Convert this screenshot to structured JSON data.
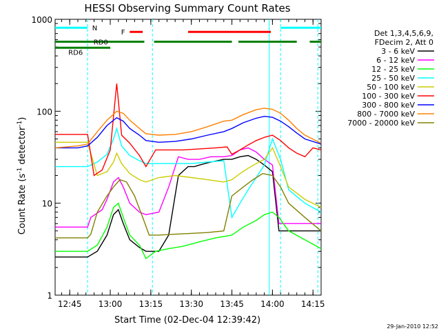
{
  "chart_data": {
    "type": "line",
    "title": "HESSI Observing Summary Count Rates",
    "xlabel": "Start Time (02-Dec-04 12:39:42)",
    "ylabel_main": "Count Rate (s",
    "ylabel_sup1": "-1",
    "ylabel_mid": " detector",
    "ylabel_sup2": "-1",
    "ylabel_end": ")",
    "ylim": [
      1,
      1000
    ],
    "yscale": "log",
    "xlim_minutes": [
      12.66,
      14.3
    ],
    "x_ticks": [
      {
        "t": 12.75,
        "label": "12:45"
      },
      {
        "t": 13.0,
        "label": "13:00"
      },
      {
        "t": 13.25,
        "label": "13:15"
      },
      {
        "t": 13.5,
        "label": "13:30"
      },
      {
        "t": 13.75,
        "label": "13:45"
      },
      {
        "t": 14.0,
        "label": "14:00"
      },
      {
        "t": 14.25,
        "label": "14:15"
      }
    ],
    "y_ticks": [
      {
        "v": 1,
        "label": "1"
      },
      {
        "v": 10,
        "label": "10"
      },
      {
        "v": 100,
        "label": "100"
      },
      {
        "v": 1000,
        "label": "1000"
      }
    ],
    "legend_header": [
      "Det 1,3,4,5,6,9,",
      "FDecim 2, Att 0"
    ],
    "series": [
      {
        "name": "3 - 6 keV",
        "color": "#000000",
        "points": [
          [
            12.66,
            2.6
          ],
          [
            12.86,
            2.6
          ],
          [
            12.92,
            3.0
          ],
          [
            12.98,
            4.5
          ],
          [
            13.02,
            7.5
          ],
          [
            13.05,
            8.5
          ],
          [
            13.08,
            6.0
          ],
          [
            13.12,
            4.0
          ],
          [
            13.18,
            3.3
          ],
          [
            13.22,
            3.0
          ],
          [
            13.3,
            3.0
          ],
          [
            13.36,
            4.5
          ],
          [
            13.42,
            20
          ],
          [
            13.48,
            25
          ],
          [
            13.52,
            25
          ],
          [
            13.55,
            26
          ],
          [
            13.62,
            28
          ],
          [
            13.7,
            30
          ],
          [
            13.75,
            30
          ],
          [
            13.8,
            32
          ],
          [
            13.85,
            33
          ],
          [
            13.9,
            30
          ],
          [
            13.95,
            26
          ],
          [
            14.0,
            22
          ],
          [
            14.04,
            5
          ],
          [
            14.08,
            5
          ],
          [
            14.15,
            5
          ],
          [
            14.3,
            5
          ]
        ]
      },
      {
        "name": "6 - 12 keV",
        "color": "#ff00ff",
        "points": [
          [
            12.66,
            5.5
          ],
          [
            12.86,
            5.5
          ],
          [
            12.88,
            7
          ],
          [
            12.95,
            8.5
          ],
          [
            12.98,
            11
          ],
          [
            13.02,
            17
          ],
          [
            13.05,
            19
          ],
          [
            13.08,
            15
          ],
          [
            13.12,
            10
          ],
          [
            13.18,
            8
          ],
          [
            13.22,
            7.5
          ],
          [
            13.3,
            8
          ],
          [
            13.36,
            15
          ],
          [
            13.42,
            32
          ],
          [
            13.48,
            30
          ],
          [
            13.55,
            30
          ],
          [
            13.62,
            32
          ],
          [
            13.7,
            32
          ],
          [
            13.75,
            33
          ],
          [
            13.8,
            38
          ],
          [
            13.85,
            40
          ],
          [
            13.9,
            36
          ],
          [
            13.95,
            30
          ],
          [
            14.0,
            26
          ],
          [
            14.04,
            6
          ],
          [
            14.1,
            6
          ],
          [
            14.3,
            6
          ]
        ]
      },
      {
        "name": "12 - 25 keV",
        "color": "#00ff00",
        "points": [
          [
            12.66,
            3.0
          ],
          [
            12.86,
            3.0
          ],
          [
            12.92,
            3.5
          ],
          [
            12.98,
            5.5
          ],
          [
            13.02,
            9
          ],
          [
            13.05,
            10
          ],
          [
            13.08,
            7
          ],
          [
            13.12,
            4.5
          ],
          [
            13.18,
            3.5
          ],
          [
            13.22,
            2.5
          ],
          [
            13.28,
            3.0
          ],
          [
            13.36,
            3.2
          ],
          [
            13.45,
            3.4
          ],
          [
            13.55,
            3.8
          ],
          [
            13.65,
            4.2
          ],
          [
            13.75,
            4.5
          ],
          [
            13.82,
            5.5
          ],
          [
            13.9,
            6.5
          ],
          [
            13.95,
            7.5
          ],
          [
            14.0,
            8.0
          ],
          [
            14.04,
            7
          ],
          [
            14.1,
            5
          ],
          [
            14.2,
            4
          ],
          [
            14.3,
            3.2
          ]
        ]
      },
      {
        "name": "25 - 50 keV",
        "color": "#00ffff",
        "points": [
          [
            12.66,
            25
          ],
          [
            12.86,
            25
          ],
          [
            12.92,
            28
          ],
          [
            12.98,
            34
          ],
          [
            13.02,
            50
          ],
          [
            13.04,
            65
          ],
          [
            13.07,
            42
          ],
          [
            13.12,
            33
          ],
          [
            13.18,
            29
          ],
          [
            13.22,
            27
          ],
          [
            13.3,
            27
          ],
          [
            13.4,
            27
          ],
          [
            13.5,
            27
          ],
          [
            13.6,
            28
          ],
          [
            13.7,
            29
          ],
          [
            13.75,
            7
          ],
          [
            13.8,
            10
          ],
          [
            13.85,
            14
          ],
          [
            13.9,
            19
          ],
          [
            13.95,
            26
          ],
          [
            14.0,
            50
          ],
          [
            14.05,
            30
          ],
          [
            14.1,
            14
          ],
          [
            14.2,
            10
          ],
          [
            14.3,
            8
          ]
        ]
      },
      {
        "name": "50 - 100 keV",
        "color": "#cccc00",
        "points": [
          [
            12.66,
            46
          ],
          [
            12.86,
            46
          ],
          [
            12.92,
            20
          ],
          [
            12.98,
            22
          ],
          [
            13.02,
            28
          ],
          [
            13.04,
            35
          ],
          [
            13.07,
            27
          ],
          [
            13.12,
            21
          ],
          [
            13.18,
            18
          ],
          [
            13.22,
            17
          ],
          [
            13.3,
            19
          ],
          [
            13.4,
            20
          ],
          [
            13.5,
            19
          ],
          [
            13.6,
            18
          ],
          [
            13.7,
            17
          ],
          [
            13.75,
            18
          ],
          [
            13.8,
            21
          ],
          [
            13.85,
            24
          ],
          [
            13.9,
            27
          ],
          [
            13.95,
            30
          ],
          [
            14.0,
            40
          ],
          [
            14.05,
            25
          ],
          [
            14.1,
            15
          ],
          [
            14.2,
            11
          ],
          [
            14.3,
            9
          ]
        ]
      },
      {
        "name": "100 - 300 keV",
        "color": "#ff0000",
        "points": [
          [
            12.66,
            56
          ],
          [
            12.86,
            56
          ],
          [
            12.9,
            20
          ],
          [
            12.95,
            23
          ],
          [
            13.0,
            38
          ],
          [
            13.04,
            200
          ],
          [
            13.07,
            55
          ],
          [
            13.12,
            45
          ],
          [
            13.18,
            33
          ],
          [
            13.22,
            25
          ],
          [
            13.28,
            38
          ],
          [
            13.35,
            38
          ],
          [
            13.45,
            38
          ],
          [
            13.55,
            39
          ],
          [
            13.65,
            40
          ],
          [
            13.72,
            41
          ],
          [
            13.75,
            34
          ],
          [
            13.8,
            38
          ],
          [
            13.85,
            43
          ],
          [
            13.9,
            48
          ],
          [
            13.95,
            52
          ],
          [
            14.0,
            55
          ],
          [
            14.05,
            48
          ],
          [
            14.1,
            40
          ],
          [
            14.15,
            35
          ],
          [
            14.2,
            32
          ],
          [
            14.25,
            40
          ],
          [
            14.3,
            38
          ]
        ]
      },
      {
        "name": "300 - 800 keV",
        "color": "#0000ff",
        "points": [
          [
            12.66,
            40
          ],
          [
            12.8,
            40
          ],
          [
            12.86,
            42
          ],
          [
            12.92,
            52
          ],
          [
            12.98,
            70
          ],
          [
            13.04,
            85
          ],
          [
            13.08,
            78
          ],
          [
            13.12,
            65
          ],
          [
            13.18,
            55
          ],
          [
            13.22,
            48
          ],
          [
            13.3,
            46
          ],
          [
            13.4,
            47
          ],
          [
            13.5,
            50
          ],
          [
            13.6,
            55
          ],
          [
            13.7,
            60
          ],
          [
            13.75,
            65
          ],
          [
            13.82,
            75
          ],
          [
            13.9,
            84
          ],
          [
            13.95,
            88
          ],
          [
            14.0,
            86
          ],
          [
            14.05,
            78
          ],
          [
            14.1,
            68
          ],
          [
            14.15,
            58
          ],
          [
            14.2,
            50
          ],
          [
            14.3,
            44
          ]
        ]
      },
      {
        "name": "800 - 7000 keV",
        "color": "#ff8000",
        "points": [
          [
            12.66,
            40
          ],
          [
            12.8,
            42
          ],
          [
            12.86,
            44
          ],
          [
            12.92,
            60
          ],
          [
            12.98,
            80
          ],
          [
            13.04,
            100
          ],
          [
            13.08,
            95
          ],
          [
            13.12,
            80
          ],
          [
            13.18,
            65
          ],
          [
            13.22,
            57
          ],
          [
            13.3,
            55
          ],
          [
            13.4,
            56
          ],
          [
            13.5,
            60
          ],
          [
            13.6,
            68
          ],
          [
            13.7,
            78
          ],
          [
            13.75,
            80
          ],
          [
            13.82,
            92
          ],
          [
            13.9,
            104
          ],
          [
            13.95,
            108
          ],
          [
            14.0,
            105
          ],
          [
            14.05,
            95
          ],
          [
            14.1,
            80
          ],
          [
            14.15,
            65
          ],
          [
            14.2,
            55
          ],
          [
            14.3,
            45
          ]
        ]
      },
      {
        "name": "7000 - 20000 keV",
        "color": "#808000",
        "points": [
          [
            12.66,
            4.2
          ],
          [
            12.86,
            4.2
          ],
          [
            12.88,
            4.6
          ],
          [
            12.92,
            8
          ],
          [
            12.98,
            12
          ],
          [
            13.02,
            15
          ],
          [
            13.06,
            18
          ],
          [
            13.1,
            17
          ],
          [
            13.15,
            12
          ],
          [
            13.2,
            7
          ],
          [
            13.24,
            4.5
          ],
          [
            13.3,
            4.5
          ],
          [
            13.4,
            4.6
          ],
          [
            13.5,
            4.7
          ],
          [
            13.6,
            4.8
          ],
          [
            13.7,
            5
          ],
          [
            13.75,
            12
          ],
          [
            13.82,
            15
          ],
          [
            13.88,
            18
          ],
          [
            13.94,
            21
          ],
          [
            14.0,
            20
          ],
          [
            14.05,
            15
          ],
          [
            14.1,
            10
          ],
          [
            14.2,
            7
          ],
          [
            14.3,
            5
          ]
        ]
      }
    ],
    "status_bars": [
      {
        "label": "N",
        "color": "#00ffff",
        "y_level": 810,
        "segments": [
          [
            12.66,
            12.86
          ],
          [
            14.05,
            14.3
          ]
        ]
      },
      {
        "label": "F",
        "color": "#ff0000",
        "y_level": 730,
        "segments": [
          [
            13.12,
            13.2
          ],
          [
            13.48,
            13.99
          ]
        ]
      },
      {
        "label": "RD0",
        "color": "#008000",
        "y_level": 570,
        "segments": [
          [
            12.66,
            13.21
          ],
          [
            13.27,
            13.75
          ],
          [
            13.79,
            14.15
          ],
          [
            14.23,
            14.3
          ]
        ]
      },
      {
        "label": "RD6",
        "color": "#008000",
        "y_level": 490,
        "segments": [
          [
            12.66,
            13.0
          ]
        ]
      }
    ],
    "saa_lines": [
      12.86,
      13.26,
      14.05,
      14.28
    ],
    "night_lines": [
      13.98
    ]
  },
  "footer": {
    "timestamp": "29-Jan-2010 12:52"
  }
}
